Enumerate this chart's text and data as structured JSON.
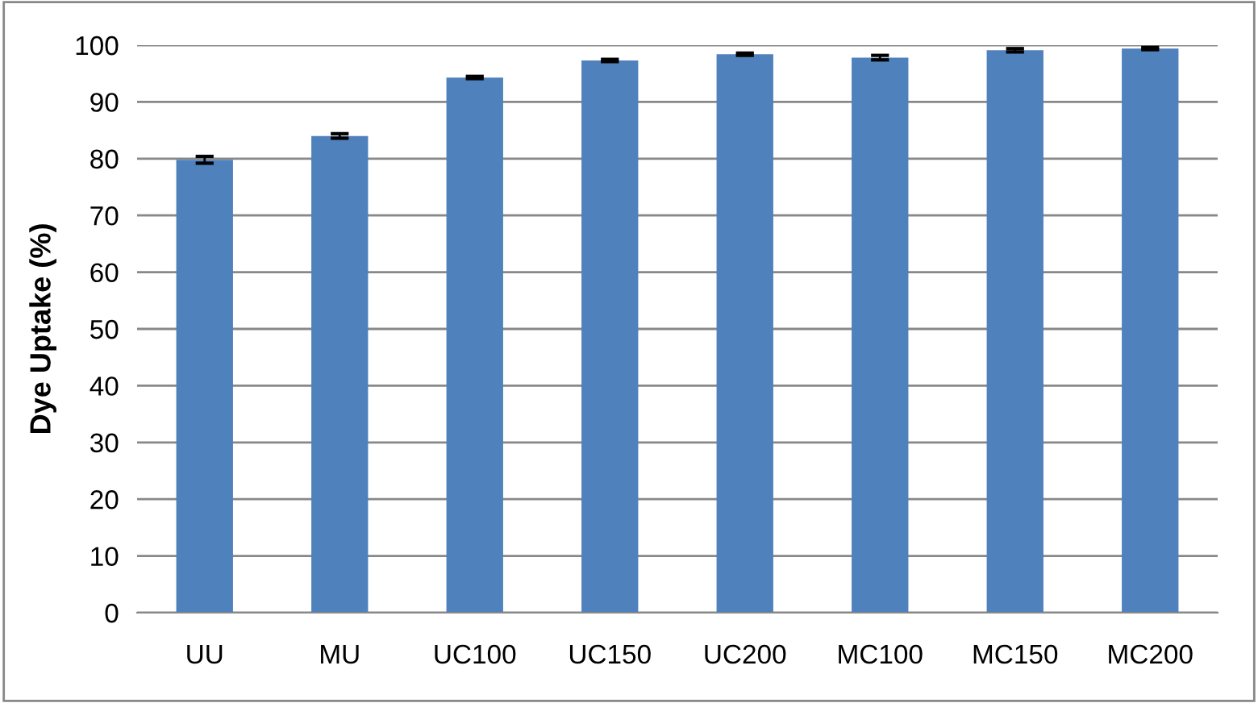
{
  "chart_data": {
    "type": "bar",
    "ylabel": "Dye Uptake (%)",
    "categories": [
      "UU",
      "MU",
      "UC100",
      "UC150",
      "UC200",
      "MC100",
      "MC150",
      "MC200"
    ],
    "series": [
      {
        "color": "#4f81bd",
        "values": [
          79.8,
          84.0,
          94.3,
          97.3,
          98.4,
          97.8,
          99.1,
          99.4
        ],
        "errors": [
          0.6,
          0.4,
          0.2,
          0.2,
          0.2,
          0.4,
          0.3,
          0.2
        ]
      }
    ],
    "ylim": [
      0,
      100
    ],
    "yticks": [
      0,
      10,
      20,
      30,
      40,
      50,
      60,
      70,
      80,
      90,
      100
    ],
    "grid": "y"
  }
}
